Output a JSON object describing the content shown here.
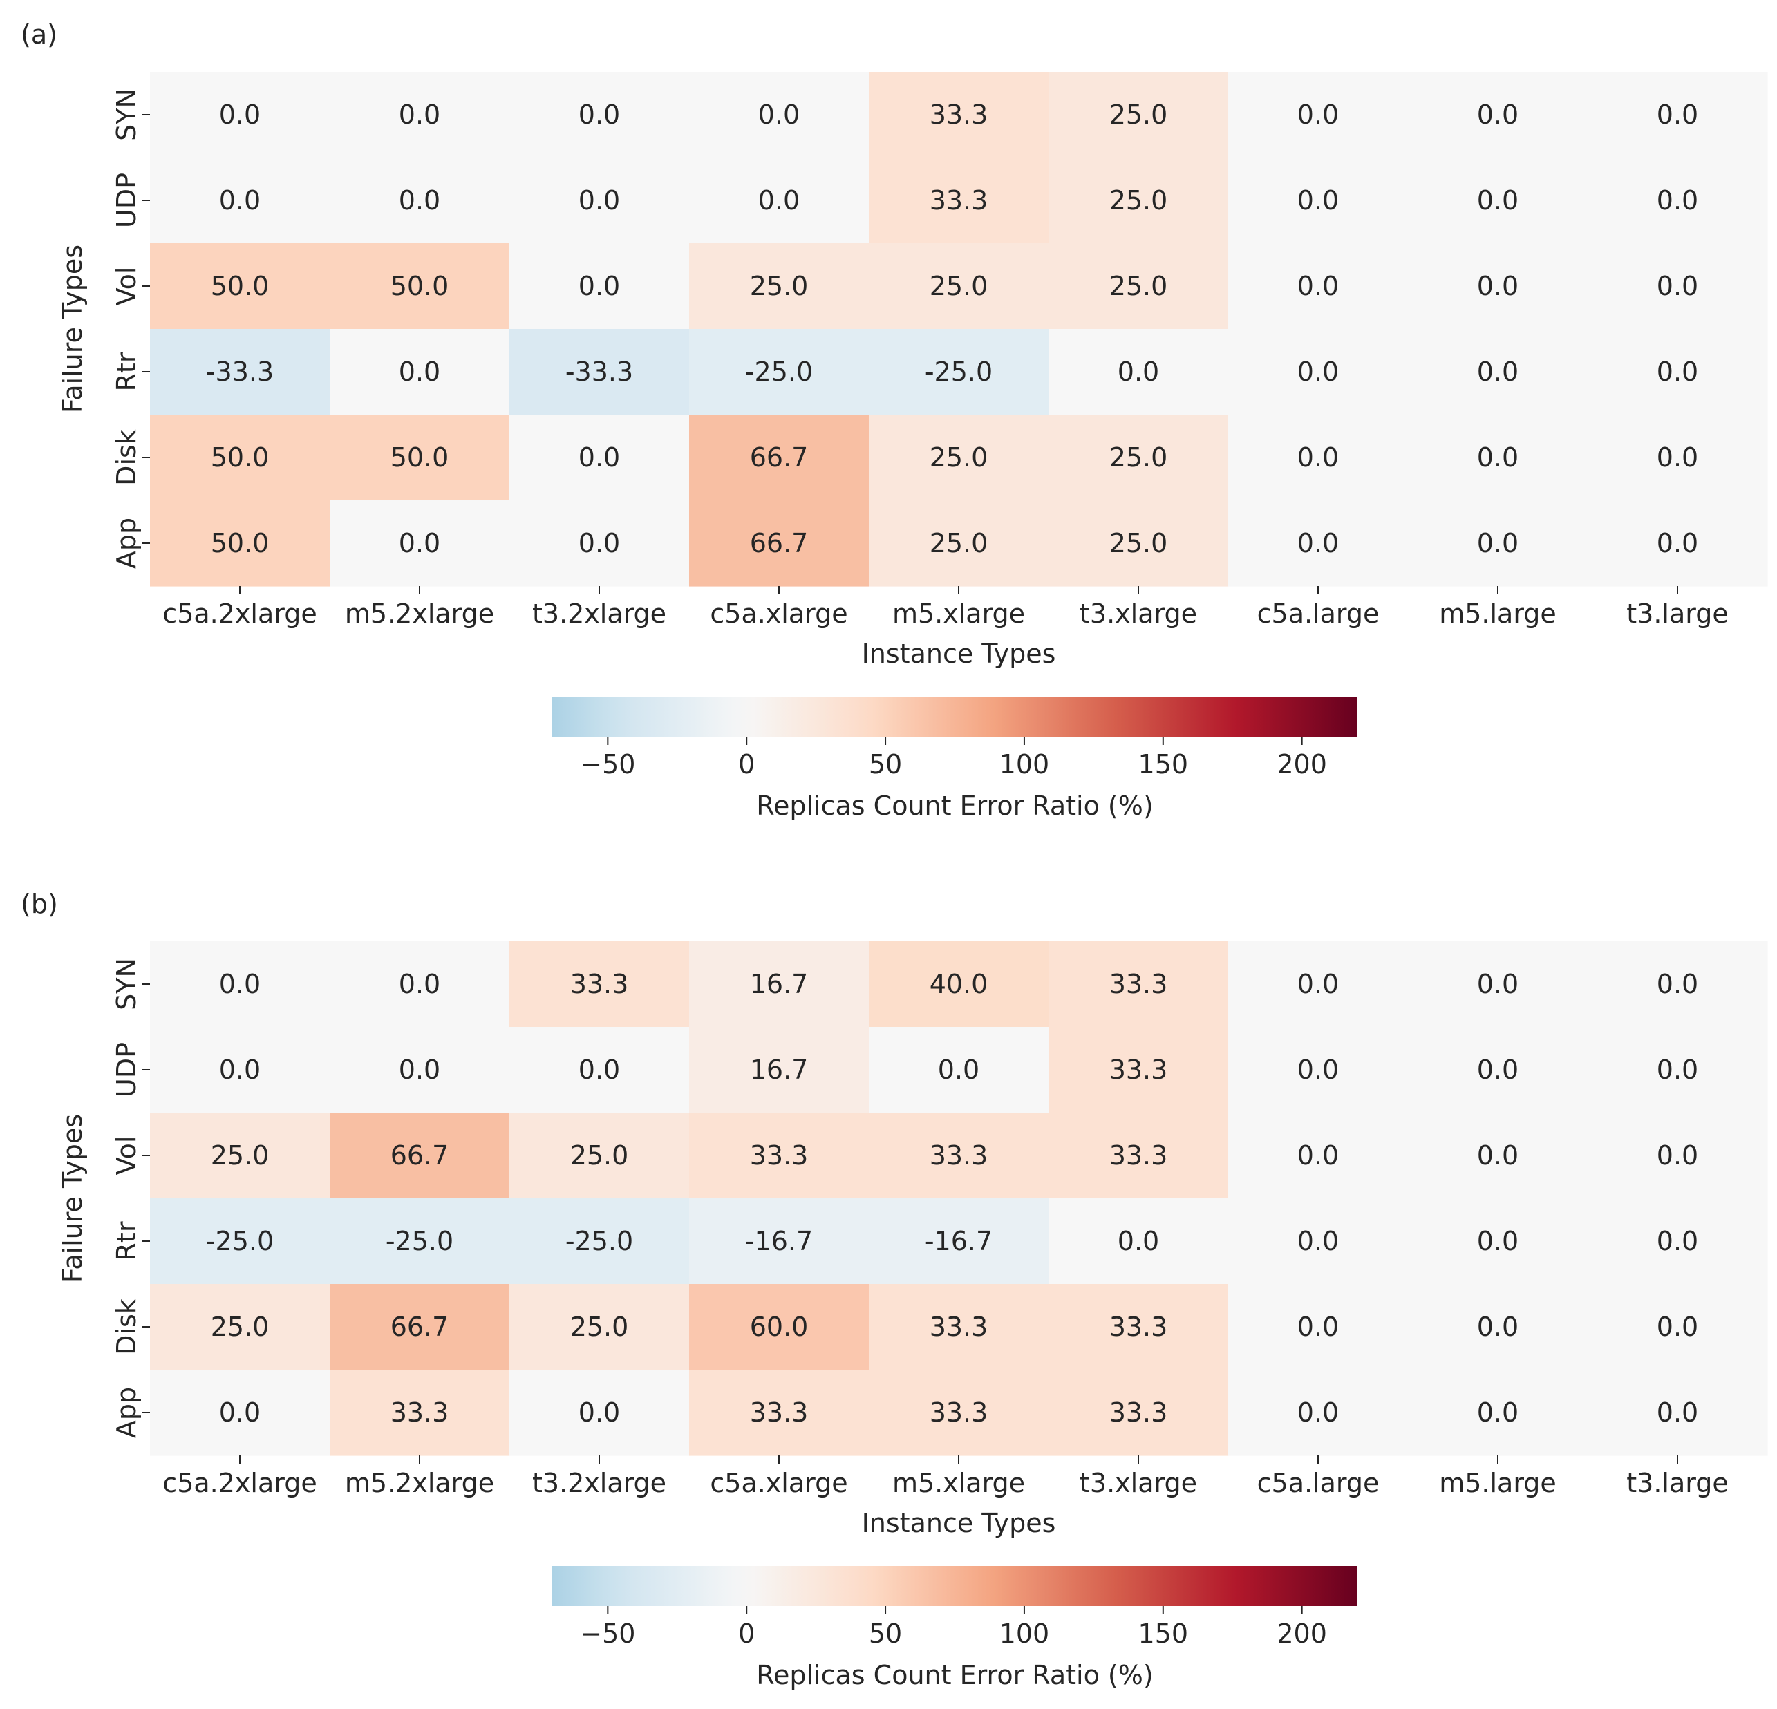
{
  "chart_data": [
    {
      "type": "heatmap",
      "panel_label": "(a)",
      "xlabel": "Instance Types",
      "ylabel": "Failure Types",
      "x_categories": [
        "c5a.2xlarge",
        "m5.2xlarge",
        "t3.2xlarge",
        "c5a.xlarge",
        "m5.xlarge",
        "t3.xlarge",
        "c5a.large",
        "m5.large",
        "t3.large"
      ],
      "y_categories": [
        "SYN",
        "UDP",
        "Vol",
        "Rtr",
        "Disk",
        "App"
      ],
      "values": [
        [
          0.0,
          0.0,
          0.0,
          0.0,
          33.3,
          25.0,
          0.0,
          0.0,
          0.0
        ],
        [
          0.0,
          0.0,
          0.0,
          0.0,
          33.3,
          25.0,
          0.0,
          0.0,
          0.0
        ],
        [
          50.0,
          50.0,
          0.0,
          25.0,
          25.0,
          25.0,
          0.0,
          0.0,
          0.0
        ],
        [
          -33.3,
          0.0,
          -33.3,
          -25.0,
          -25.0,
          0.0,
          0.0,
          0.0,
          0.0
        ],
        [
          50.0,
          50.0,
          0.0,
          66.7,
          25.0,
          25.0,
          0.0,
          0.0,
          0.0
        ],
        [
          50.0,
          0.0,
          0.0,
          66.7,
          25.0,
          25.0,
          0.0,
          0.0,
          0.0
        ]
      ],
      "colorbar": {
        "label": "Replicas Count Error Ratio (%)",
        "range": [
          -70,
          220
        ],
        "ticks": [
          -50,
          0,
          50,
          100,
          150,
          200
        ],
        "tick_labels": [
          "−50",
          "0",
          "50",
          "100",
          "150",
          "200"
        ],
        "colormap": "RdBu_r"
      }
    },
    {
      "type": "heatmap",
      "panel_label": "(b)",
      "xlabel": "Instance Types",
      "ylabel": "Failure Types",
      "x_categories": [
        "c5a.2xlarge",
        "m5.2xlarge",
        "t3.2xlarge",
        "c5a.xlarge",
        "m5.xlarge",
        "t3.xlarge",
        "c5a.large",
        "m5.large",
        "t3.large"
      ],
      "y_categories": [
        "SYN",
        "UDP",
        "Vol",
        "Rtr",
        "Disk",
        "App"
      ],
      "values": [
        [
          0.0,
          0.0,
          33.3,
          16.7,
          40.0,
          33.3,
          0.0,
          0.0,
          0.0
        ],
        [
          0.0,
          0.0,
          0.0,
          16.7,
          0.0,
          33.3,
          0.0,
          0.0,
          0.0
        ],
        [
          25.0,
          66.7,
          25.0,
          33.3,
          33.3,
          33.3,
          0.0,
          0.0,
          0.0
        ],
        [
          -25.0,
          -25.0,
          -25.0,
          -16.7,
          -16.7,
          0.0,
          0.0,
          0.0,
          0.0
        ],
        [
          25.0,
          66.7,
          25.0,
          60.0,
          33.3,
          33.3,
          0.0,
          0.0,
          0.0
        ],
        [
          0.0,
          33.3,
          0.0,
          33.3,
          33.3,
          33.3,
          0.0,
          0.0,
          0.0
        ]
      ],
      "colorbar": {
        "label": "Replicas Count Error Ratio (%)",
        "range": [
          -70,
          220
        ],
        "ticks": [
          -50,
          0,
          50,
          100,
          150,
          200
        ],
        "tick_labels": [
          "−50",
          "0",
          "50",
          "100",
          "150",
          "200"
        ],
        "colormap": "RdBu_r"
      }
    }
  ]
}
